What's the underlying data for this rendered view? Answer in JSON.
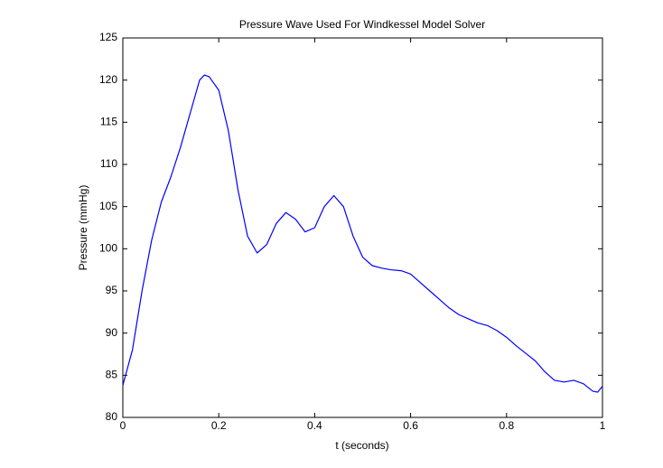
{
  "chart_data": {
    "type": "line",
    "title": "Pressure Wave Used For Windkessel Model Solver",
    "xlabel": "t (seconds)",
    "ylabel": "Pressure (mmHg)",
    "x": [
      0,
      0.02,
      0.04,
      0.06,
      0.08,
      0.1,
      0.12,
      0.14,
      0.16,
      0.17,
      0.18,
      0.2,
      0.22,
      0.24,
      0.26,
      0.28,
      0.3,
      0.32,
      0.34,
      0.36,
      0.38,
      0.4,
      0.42,
      0.44,
      0.46,
      0.48,
      0.5,
      0.52,
      0.54,
      0.56,
      0.58,
      0.6,
      0.62,
      0.64,
      0.66,
      0.68,
      0.7,
      0.72,
      0.74,
      0.76,
      0.78,
      0.8,
      0.82,
      0.84,
      0.86,
      0.88,
      0.9,
      0.92,
      0.94,
      0.96,
      0.98,
      0.99,
      1
    ],
    "values": [
      83.8,
      88,
      95,
      101,
      105.5,
      108.5,
      112,
      116,
      120,
      120.6,
      120.4,
      118.8,
      114,
      107,
      101.5,
      99.5,
      100.5,
      103,
      104.3,
      103.5,
      102,
      102.5,
      105,
      106.3,
      105,
      101.5,
      99,
      98,
      97.7,
      97.5,
      97.4,
      97,
      96,
      95,
      94,
      93,
      92.2,
      91.7,
      91.2,
      90.9,
      90.3,
      89.5,
      88.5,
      87.6,
      86.7,
      85.4,
      84.4,
      84.2,
      84.4,
      84,
      83.1,
      83,
      83.7
    ],
    "color": "#0000ff",
    "xlim": [
      0,
      1
    ],
    "xticks": [
      0,
      0.2,
      0.4,
      0.6,
      0.8,
      1
    ],
    "ylim": [
      80,
      125
    ],
    "yticks": [
      80,
      85,
      90,
      95,
      100,
      105,
      110,
      115,
      120,
      125
    ],
    "grid": false
  }
}
